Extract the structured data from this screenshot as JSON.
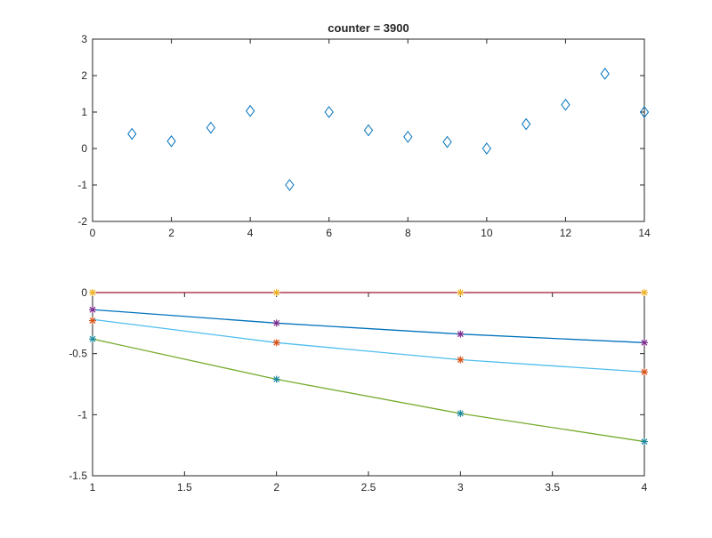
{
  "chart_data": [
    {
      "type": "scatter",
      "title": "counter = 3900",
      "marker": "diamond",
      "color": "#0072BD",
      "xlim": [
        0,
        14
      ],
      "ylim": [
        -2,
        3
      ],
      "xticks": [
        0,
        2,
        4,
        6,
        8,
        10,
        12,
        14
      ],
      "yticks": [
        -2,
        -1,
        0,
        1,
        2,
        3
      ],
      "grid": false,
      "x": [
        1,
        2,
        3,
        4,
        5,
        6,
        7,
        8,
        9,
        10,
        11,
        12,
        13,
        14
      ],
      "y": [
        0.4,
        0.2,
        0.57,
        1.03,
        -1.0,
        1.0,
        0.5,
        0.32,
        0.18,
        0.0,
        0.67,
        1.2,
        2.05,
        1.0
      ]
    },
    {
      "type": "line",
      "xlim": [
        1,
        4
      ],
      "ylim": [
        -1.5,
        0
      ],
      "xticks": [
        1,
        1.5,
        2,
        2.5,
        3,
        3.5,
        4
      ],
      "yticks": [
        -1.5,
        -1,
        -0.5,
        0
      ],
      "grid": false,
      "x": [
        1,
        2,
        3,
        4
      ],
      "series": [
        {
          "kind": "line",
          "color": "#A2142F",
          "values": [
            0,
            0,
            0,
            0
          ]
        },
        {
          "kind": "stars",
          "color": "#EDB120",
          "values": [
            0,
            0,
            0,
            0
          ]
        },
        {
          "kind": "line",
          "color": "#0072BD",
          "values": [
            -0.14,
            -0.25,
            -0.34,
            -0.41
          ]
        },
        {
          "kind": "stars",
          "color": "#7E2F8E",
          "values": [
            -0.14,
            -0.25,
            -0.34,
            -0.41
          ]
        },
        {
          "kind": "line",
          "color": "#4DBEEE",
          "values": [
            -0.22,
            -0.41,
            -0.55,
            -0.65
          ]
        },
        {
          "kind": "stars",
          "color": "#D95319",
          "values": [
            -0.23,
            -0.41,
            -0.55,
            -0.65
          ]
        },
        {
          "kind": "line",
          "color": "#77AC30",
          "values": [
            -0.38,
            -0.71,
            -0.99,
            -1.22
          ]
        },
        {
          "kind": "stars",
          "color": "#1F8A9E",
          "values": [
            -0.38,
            -0.71,
            -0.99,
            -1.22
          ]
        }
      ]
    }
  ]
}
